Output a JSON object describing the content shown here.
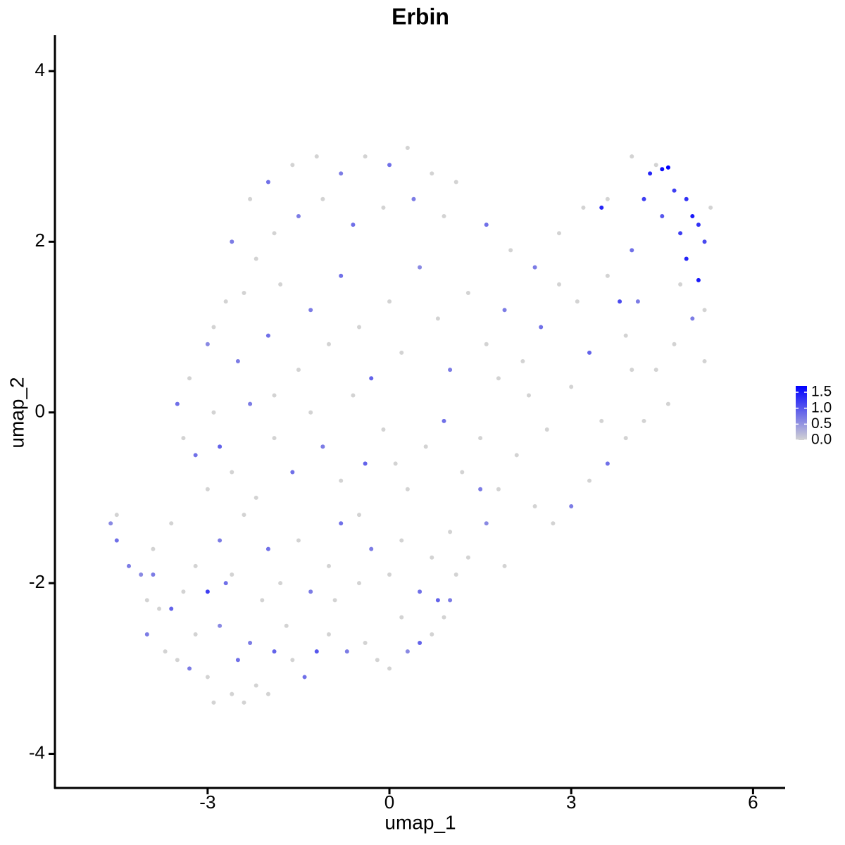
{
  "chart_data": {
    "type": "scatter",
    "title": "Erbin",
    "x_label": "umap_1",
    "y_label": "umap_2",
    "xlim": [
      -5.52,
      6.53
    ],
    "ylim": [
      -4.4,
      4.42
    ],
    "xticks": [
      -3,
      0,
      3,
      6
    ],
    "yticks": [
      4,
      2,
      0,
      -2,
      -4
    ],
    "x": [
      -4.6,
      -4.5,
      -4.5,
      -4.3,
      -4.1,
      -4.0,
      -3.8,
      -3.9,
      -4.0,
      -3.7,
      -3.6,
      -3.5,
      -3.3,
      -3.4,
      -3.2,
      -3.0,
      -3.0,
      -2.8,
      -2.6,
      -2.5,
      -2.4,
      -2.3,
      -2.2,
      -2.1,
      -2.0,
      -1.9,
      -1.6,
      -1.4,
      -1.2,
      -1.0,
      -0.7,
      -0.4,
      -0.2,
      0.0,
      0.3,
      0.5,
      0.7,
      0.9,
      1.0,
      1.1,
      -3.2,
      -2.8,
      -2.6,
      -2.4,
      -2.0,
      -1.8,
      -1.5,
      -1.3,
      -1.0,
      -0.8,
      -0.5,
      -0.3,
      0.0,
      0.2,
      0.5,
      0.7,
      1.0,
      1.3,
      1.6,
      1.9,
      -3.4,
      -3.2,
      -3.0,
      -2.8,
      -2.6,
      -2.3,
      -2.2,
      -1.9,
      -1.6,
      -1.3,
      -1.1,
      -0.8,
      -0.6,
      -0.4,
      -0.1,
      0.3,
      0.6,
      0.9,
      1.2,
      1.5,
      1.8,
      2.1,
      2.4,
      2.7,
      3.0,
      3.3,
      3.6,
      3.9,
      4.2,
      4.6,
      -3.3,
      -3.0,
      -2.7,
      -2.5,
      -2.2,
      -2.0,
      -1.8,
      -1.5,
      -1.3,
      -1.0,
      -0.8,
      -0.5,
      -0.3,
      0.0,
      0.2,
      0.5,
      0.8,
      1.0,
      1.3,
      1.6,
      1.9,
      2.2,
      2.5,
      2.8,
      3.1,
      3.3,
      3.6,
      3.9,
      4.1,
      4.4,
      4.7,
      5.0,
      5.2,
      4.8,
      2.0,
      2.4,
      2.8,
      3.2,
      3.6,
      1.6,
      -2.6,
      -2.3,
      -2.0,
      -1.6,
      -1.2,
      -0.8,
      -0.4,
      0.0,
      0.3,
      0.7,
      1.1,
      0.9,
      0.4,
      -0.1,
      -0.6,
      -1.1,
      -1.5,
      -1.9,
      -2.4,
      -2.9,
      4.3,
      4.5,
      4.6,
      4.7,
      4.9,
      5.0,
      5.1,
      5.2,
      4.9,
      5.1,
      4.8,
      4.5,
      4.2,
      3.5,
      4.0,
      4.4,
      5.3,
      5.2,
      4.0,
      3.8,
      -1.7,
      -2.7,
      -3.6,
      -3.9,
      -2.9,
      0.2,
      -0.9,
      0.8,
      1.5,
      2.6,
      3.5,
      4.0,
      3.0,
      2.3,
      1.8,
      -0.5,
      0.1,
      -1.9,
      -2.9,
      -3.5
    ],
    "y": [
      -1.3,
      -1.2,
      -1.5,
      -1.8,
      -1.9,
      -2.2,
      -2.3,
      -1.6,
      -2.6,
      -2.8,
      -2.3,
      -2.9,
      -3.0,
      -2.1,
      -2.6,
      -2.1,
      -3.1,
      -2.5,
      -3.3,
      -2.9,
      -3.4,
      -2.7,
      -3.2,
      -2.2,
      -3.3,
      -2.8,
      -2.9,
      -3.1,
      -2.8,
      -2.6,
      -2.8,
      -2.7,
      -2.9,
      -3.0,
      -2.8,
      -2.7,
      -2.6,
      -2.4,
      -2.2,
      -1.9,
      -1.8,
      -1.5,
      -1.9,
      -1.2,
      -1.6,
      -2.0,
      -1.5,
      -2.1,
      -1.8,
      -1.3,
      -2.0,
      -1.6,
      -1.9,
      -1.5,
      -2.1,
      -1.7,
      -1.4,
      -1.7,
      -1.3,
      -1.8,
      -0.3,
      -0.5,
      -0.9,
      -0.4,
      -0.7,
      0.1,
      -1.0,
      -0.3,
      -0.7,
      0.0,
      -0.4,
      -0.8,
      0.2,
      -0.6,
      -0.2,
      -0.9,
      -0.4,
      -0.1,
      -0.7,
      -0.3,
      -0.9,
      -0.5,
      -1.1,
      -1.3,
      -1.1,
      -0.8,
      -0.6,
      -0.3,
      -0.1,
      0.1,
      0.4,
      0.8,
      1.3,
      0.6,
      1.8,
      0.9,
      1.5,
      0.5,
      1.2,
      0.8,
      1.6,
      1.0,
      0.4,
      1.3,
      0.7,
      1.7,
      1.1,
      0.5,
      1.4,
      0.8,
      1.2,
      0.6,
      1.0,
      1.5,
      1.3,
      0.7,
      1.6,
      0.9,
      1.3,
      0.5,
      0.8,
      1.1,
      0.6,
      1.5,
      1.9,
      1.7,
      2.1,
      2.4,
      2.5,
      2.2,
      2.0,
      2.5,
      2.7,
      2.9,
      3.0,
      2.8,
      3.0,
      2.9,
      3.1,
      2.8,
      2.7,
      2.3,
      2.5,
      2.4,
      2.2,
      2.5,
      2.3,
      2.1,
      1.4,
      1.0,
      2.8,
      2.85,
      2.87,
      2.6,
      2.5,
      2.3,
      2.2,
      2.0,
      1.8,
      1.55,
      2.1,
      2.3,
      2.5,
      2.4,
      3.0,
      2.9,
      2.4,
      1.2,
      1.9,
      1.3,
      -2.5,
      -2.0,
      -1.3,
      -1.9,
      -3.4,
      -2.4,
      -2.2,
      -2.2,
      -0.9,
      -0.2,
      -0.1,
      0.5,
      0.3,
      0.2,
      0.4,
      -1.2,
      -0.6,
      0.2,
      0.0,
      0.1
    ],
    "values": [
      0.6,
      0,
      0.8,
      0.7,
      0.6,
      0,
      0,
      0,
      0.7,
      0,
      0.9,
      0,
      0.7,
      0,
      0,
      1.2,
      0,
      0.6,
      0,
      0.8,
      0,
      0.7,
      0,
      0,
      0,
      0.9,
      0,
      0.8,
      1.0,
      0,
      0.7,
      0,
      0,
      0,
      0.6,
      0.9,
      0,
      0,
      0.7,
      0,
      0,
      0.7,
      0,
      0,
      0.8,
      0,
      0,
      0.7,
      0,
      0.8,
      0,
      0.7,
      0,
      0,
      0.8,
      0,
      0,
      0,
      0.6,
      0,
      0,
      0.8,
      0,
      0.9,
      0,
      0.7,
      0,
      0,
      0.8,
      0,
      0.7,
      0,
      0,
      0.9,
      0,
      0,
      0,
      0.8,
      0,
      0,
      0,
      0,
      0,
      0,
      0.7,
      0,
      0.8,
      0,
      0,
      0,
      0,
      0.6,
      0,
      0.7,
      0,
      0.8,
      0,
      0,
      0.7,
      0,
      0.8,
      0,
      0.9,
      0,
      0,
      0.6,
      0,
      0.7,
      0,
      0,
      0.7,
      0,
      0.8,
      0,
      0,
      0.9,
      0,
      0,
      0.7,
      0,
      0,
      0.7,
      0,
      0,
      0,
      0.7,
      0,
      0,
      0,
      0.8,
      0.7,
      0,
      0.8,
      0,
      0,
      0.7,
      0,
      0.8,
      0,
      0,
      0,
      0,
      0.7,
      0,
      0.8,
      0,
      0.7,
      0,
      0,
      0,
      1.4,
      1.6,
      1.7,
      1.2,
      1.3,
      1.5,
      1.3,
      1.1,
      1.4,
      1.5,
      1.2,
      1.0,
      1.2,
      1.4,
      0,
      0,
      0,
      0,
      0.8,
      1.1,
      0,
      0.8,
      0,
      0.7,
      0,
      0,
      0,
      0.9,
      0.7,
      0,
      0,
      0,
      0,
      0,
      0,
      0,
      0,
      0,
      0,
      0.8
    ],
    "color_low": "#d3d3d3",
    "color_high": "#0000ff",
    "color_lim": [
      0,
      1.7
    ],
    "color_ticks": [
      {
        "value": 0,
        "label": "0.0"
      },
      {
        "value": 0.5,
        "label": "0.5"
      },
      {
        "value": 1,
        "label": "1.0"
      },
      {
        "value": 1.5,
        "label": "1.5"
      }
    ]
  }
}
